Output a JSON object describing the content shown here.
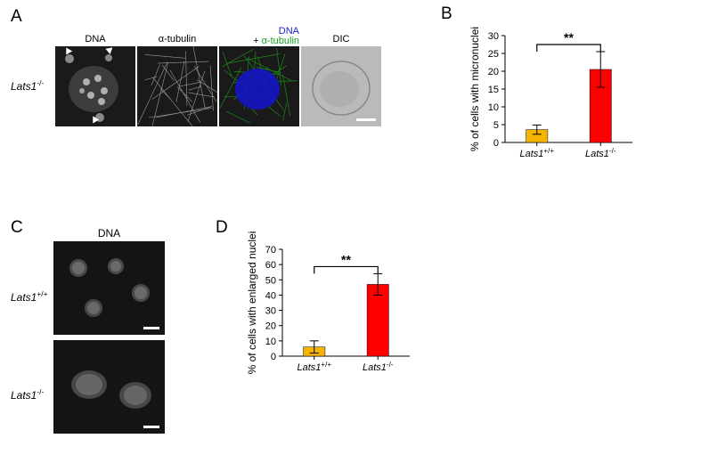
{
  "panelA": {
    "letter": "A",
    "genotype": "Lats1",
    "genotype_sup": "-/-",
    "images": [
      {
        "label_parts": [
          {
            "text": "DNA",
            "color": "#000"
          }
        ]
      },
      {
        "label_parts": [
          {
            "text": "α-tubulin",
            "color": "#000"
          }
        ]
      },
      {
        "label_parts": [
          {
            "text": "DNA",
            "color": "#2020d0"
          },
          {
            "text": "+ ",
            "color": "#000"
          },
          {
            "text": "α-tubulin",
            "color": "#1fa020"
          }
        ],
        "two_line": true
      },
      {
        "label_parts": [
          {
            "text": "DIC",
            "color": "#000"
          }
        ]
      }
    ]
  },
  "panelB": {
    "letter": "B",
    "chart": {
      "type": "bar",
      "ylabel": "% of cells with micronuclei",
      "ylim": [
        0,
        30
      ],
      "ytick_step": 5,
      "categories": [
        {
          "base": "Lats1",
          "sup": "+/+"
        },
        {
          "base": "Lats1",
          "sup": "-/-"
        }
      ],
      "values": [
        3.6,
        20.5
      ],
      "errs": [
        1.3,
        5.0
      ],
      "bar_colors": [
        "#f4b400",
        "#ff0000"
      ],
      "sig_label": "**",
      "bar_width": 0.34,
      "label_fontsize": 12,
      "tick_fontsize": 11,
      "axis_color": "#000",
      "background": "#ffffff"
    }
  },
  "panelC": {
    "letter": "C",
    "header": "DNA",
    "genotypes": [
      {
        "base": "Lats1",
        "sup": "+/+"
      },
      {
        "base": "Lats1",
        "sup": "-/-"
      }
    ]
  },
  "panelD": {
    "letter": "D",
    "chart": {
      "type": "bar",
      "ylabel": "% of cells with enlarged nuclei",
      "ylim": [
        0,
        70
      ],
      "ytick_step": 10,
      "categories": [
        {
          "base": "Lats1",
          "sup": "+/+"
        },
        {
          "base": "Lats1",
          "sup": "-/-"
        }
      ],
      "values": [
        6,
        47
      ],
      "errs": [
        4,
        7
      ],
      "bar_colors": [
        "#f4b400",
        "#ff0000"
      ],
      "sig_label": "**",
      "bar_width": 0.34,
      "label_fontsize": 12,
      "tick_fontsize": 11,
      "axis_color": "#000",
      "background": "#ffffff"
    }
  }
}
